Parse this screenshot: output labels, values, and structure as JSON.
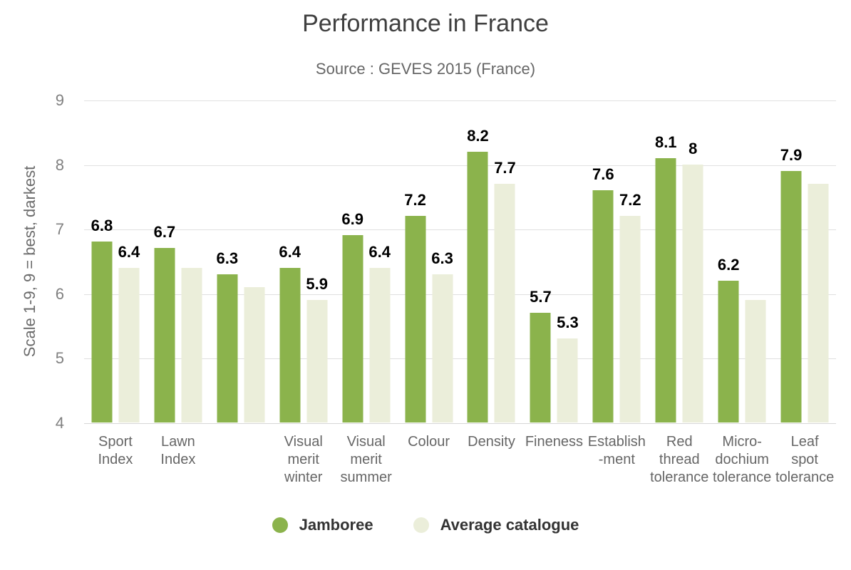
{
  "chart_data": {
    "type": "bar",
    "title": "Performance in France",
    "subtitle": "Source : GEVES 2015 (France)",
    "ylabel": "Scale 1-9, 9 = best, darkest",
    "xlabel": "",
    "ylim": [
      4,
      9
    ],
    "yticks": [
      9,
      8,
      7,
      6,
      5,
      4
    ],
    "grid": true,
    "legend_position": "bottom",
    "categories": [
      {
        "name": "Sport Index",
        "lines": [
          "Sport",
          "Index"
        ]
      },
      {
        "name": "Lawn Index",
        "lines": [
          "Lawn",
          "Index"
        ]
      },
      {
        "name": "",
        "lines": []
      },
      {
        "name": "Visual merit winter",
        "lines": [
          "Visual",
          "merit",
          "winter"
        ]
      },
      {
        "name": "Visual merit summer",
        "lines": [
          "Visual",
          "merit",
          "summer"
        ]
      },
      {
        "name": "Colour",
        "lines": [
          "Colour"
        ]
      },
      {
        "name": "Density",
        "lines": [
          "Density"
        ]
      },
      {
        "name": "Fineness",
        "lines": [
          "Fineness"
        ]
      },
      {
        "name": "Establish-ment",
        "lines": [
          "Establish",
          "-ment"
        ]
      },
      {
        "name": "Red thread tolerance",
        "lines": [
          "Red",
          "thread",
          "tolerance"
        ]
      },
      {
        "name": "Micro-dochium tolerance",
        "lines": [
          "Micro-",
          "dochium",
          "tolerance"
        ]
      },
      {
        "name": "Leaf spot tolerance",
        "lines": [
          "Leaf",
          "spot",
          "tolerance"
        ]
      }
    ],
    "series": [
      {
        "name": "Jamboree",
        "color": "#8BB34C",
        "values": [
          6.8,
          6.7,
          6.3,
          6.4,
          6.9,
          7.2,
          8.2,
          5.7,
          7.6,
          8.1,
          6.2,
          7.9
        ],
        "labels": [
          "6.8",
          "6.7",
          "6.3",
          "6.4",
          "6.9",
          "7.2",
          "8.2",
          "5.7",
          "7.6",
          "8.1",
          "6.2",
          "7.9"
        ]
      },
      {
        "name": "Average catalogue",
        "color": "#EBEEDA",
        "values": [
          6.4,
          6.4,
          6.1,
          5.9,
          6.4,
          6.3,
          7.7,
          5.3,
          7.2,
          8,
          5.9,
          7.7
        ],
        "labels": [
          "6.4",
          "",
          "",
          "5.9",
          "6.4",
          "6.3",
          "7.7",
          "5.3",
          "7.2",
          "8",
          "",
          ""
        ]
      }
    ]
  },
  "colors": {
    "background": "#FFFFFF",
    "title": "#3F3F3F",
    "subtitle": "#666666",
    "tick_label": "#808080",
    "axis_label": "#666666",
    "value_label": "#000000",
    "legend_text": "#333333",
    "gridline": "#E0E0E0",
    "axis_line": "#D6D6D6",
    "series_green": "#8BB34C",
    "series_beige": "#EBEEDA"
  }
}
